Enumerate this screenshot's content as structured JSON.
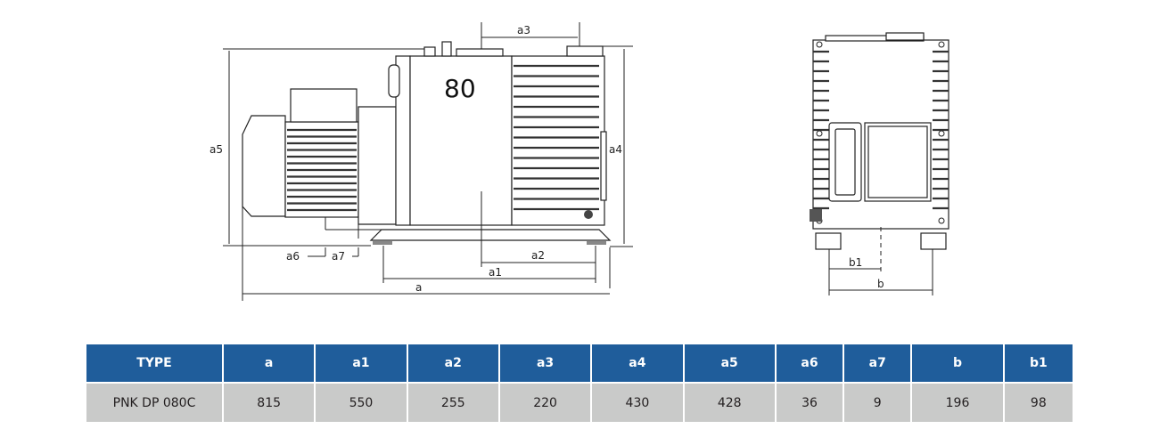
{
  "drawing": {
    "model_number": "80",
    "labels": {
      "a": "a",
      "a1": "a1",
      "a2": "a2",
      "a3": "a3",
      "a4": "a4",
      "a5": "a5",
      "a6": "a6",
      "a7": "a7",
      "b": "b",
      "b1": "b1"
    }
  },
  "table": {
    "headers": [
      "TYPE",
      "a",
      "a1",
      "a2",
      "a3",
      "a4",
      "a5",
      "a6",
      "a7",
      "b",
      "b1"
    ],
    "rows": [
      [
        "PNK DP 080C",
        "815",
        "550",
        "255",
        "220",
        "430",
        "428",
        "36",
        "9",
        "196",
        "98"
      ]
    ]
  },
  "colors": {
    "header_bg": "#1f5d9b",
    "row_bg": "#c9cac9"
  }
}
